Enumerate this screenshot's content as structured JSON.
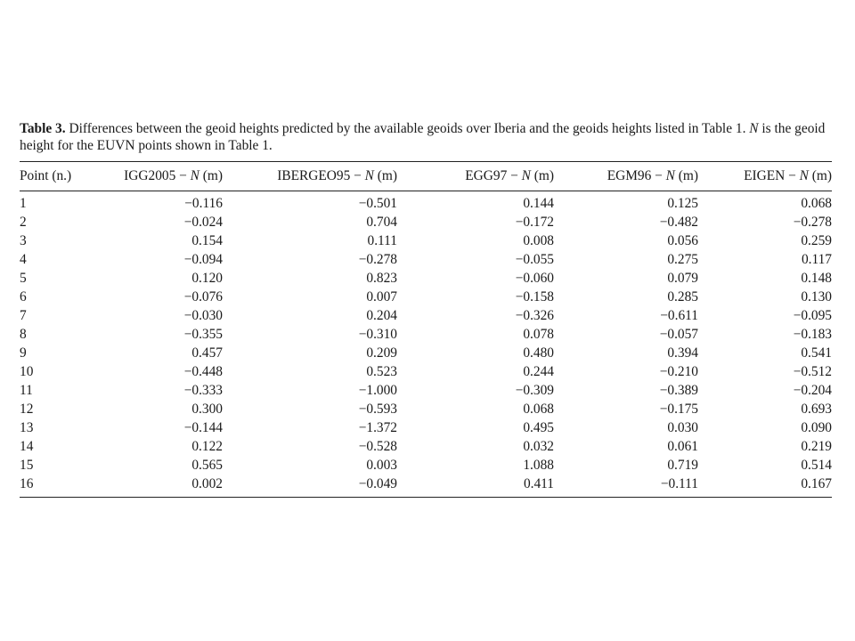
{
  "caption": {
    "label": "Table 3.",
    "text_before_N": "Differences between the geoid heights predicted by the available geoids over Iberia and the geoids heights listed in Table 1.",
    "symbol_N": "N",
    "text_after_N": "is the geoid height for the EUVN points shown in Table 1."
  },
  "table": {
    "headers": [
      {
        "prefix": "Point (n.)",
        "symbol": "",
        "suffix": ""
      },
      {
        "prefix": "IGG2005 − ",
        "symbol": "N",
        "suffix": " (m)"
      },
      {
        "prefix": "IBERGEO95 − ",
        "symbol": "N",
        "suffix": " (m)"
      },
      {
        "prefix": "EGG97 − ",
        "symbol": "N",
        "suffix": " (m)"
      },
      {
        "prefix": "EGM96 − ",
        "symbol": "N",
        "suffix": " (m)"
      },
      {
        "prefix": "EIGEN − ",
        "symbol": "N",
        "suffix": " (m)"
      }
    ],
    "rows": [
      [
        "1",
        "−0.116",
        "−0.501",
        "0.144",
        "0.125",
        "0.068"
      ],
      [
        "2",
        "−0.024",
        "0.704",
        "−0.172",
        "−0.482",
        "−0.278"
      ],
      [
        "3",
        "0.154",
        "0.111",
        "0.008",
        "0.056",
        "0.259"
      ],
      [
        "4",
        "−0.094",
        "−0.278",
        "−0.055",
        "0.275",
        "0.117"
      ],
      [
        "5",
        "0.120",
        "0.823",
        "−0.060",
        "0.079",
        "0.148"
      ],
      [
        "6",
        "−0.076",
        "0.007",
        "−0.158",
        "0.285",
        "0.130"
      ],
      [
        "7",
        "−0.030",
        "0.204",
        "−0.326",
        "−0.611",
        "−0.095"
      ],
      [
        "8",
        "−0.355",
        "−0.310",
        "0.078",
        "−0.057",
        "−0.183"
      ],
      [
        "9",
        "0.457",
        "0.209",
        "0.480",
        "0.394",
        "0.541"
      ],
      [
        "10",
        "−0.448",
        "0.523",
        "0.244",
        "−0.210",
        "−0.512"
      ],
      [
        "11",
        "−0.333",
        "−1.000",
        "−0.309",
        "−0.389",
        "−0.204"
      ],
      [
        "12",
        "0.300",
        "−0.593",
        "0.068",
        "−0.175",
        "0.693"
      ],
      [
        "13",
        "−0.144",
        "−1.372",
        "0.495",
        "0.030",
        "0.090"
      ],
      [
        "14",
        "0.122",
        "−0.528",
        "0.032",
        "0.061",
        "0.219"
      ],
      [
        "15",
        "0.565",
        "0.003",
        "1.088",
        "0.719",
        "0.514"
      ],
      [
        "16",
        "0.002",
        "−0.049",
        "0.411",
        "−0.111",
        "0.167"
      ]
    ]
  }
}
